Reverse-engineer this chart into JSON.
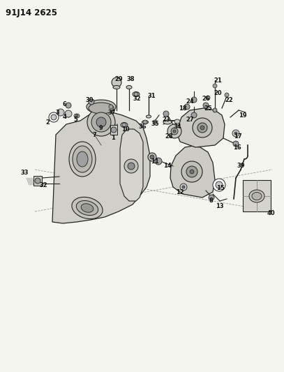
{
  "title_code": "91J14 2625",
  "bg_color": "#f5f5f0",
  "line_color": "#222222",
  "text_color": "#111111",
  "fig_width": 4.07,
  "fig_height": 5.33,
  "dpi": 100,
  "title_fontsize": 8.5,
  "label_fontsize": 6.0,
  "white": "#ffffff",
  "gray_light": "#c8c8c8",
  "gray_med": "#a0a0a0",
  "gray_dark": "#707070",
  "gray_pump": "#b8b8b8"
}
